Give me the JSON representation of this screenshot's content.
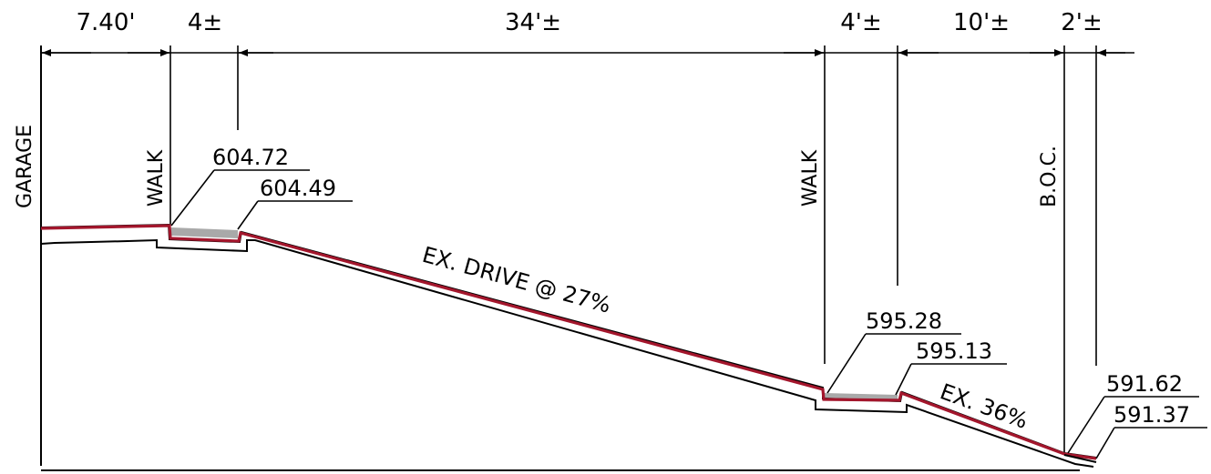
{
  "dimensions": {
    "garage_to_walk": "7.40'",
    "upper_walk_width": "4±",
    "drive_length": "34'±",
    "lower_walk_width": "4'±",
    "walk_to_boc": "10'±",
    "boc_offset": "2'±"
  },
  "side_labels": {
    "garage": "GARAGE",
    "walk_upper": "WALK",
    "walk_lower": "WALK",
    "boc": "B.O.C."
  },
  "elevations": {
    "upper_walk_top": "604.72",
    "upper_walk_bottom": "604.49",
    "lower_walk_top": "595.28",
    "lower_walk_bottom": "595.13",
    "curb_top": "591.62",
    "curb_bottom": "591.37"
  },
  "labels": {
    "drive": "EX. DRIVE @ 27%",
    "slope": "EX. 36%"
  },
  "colors": {
    "profile_line": "#a3162c",
    "walk_fill": "#a9a9a9",
    "linework": "#000000"
  }
}
